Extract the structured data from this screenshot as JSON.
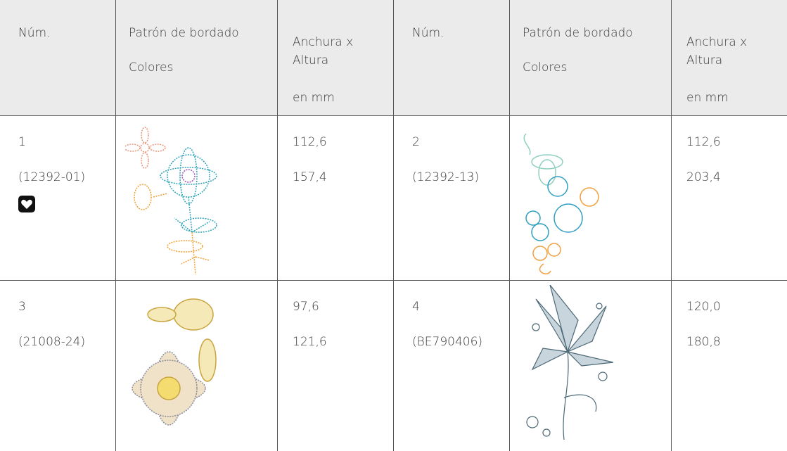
{
  "table": {
    "header": {
      "left": {
        "num": "Núm.",
        "pattern": "Patrón de bordado",
        "colors": "Colores",
        "size": "Anchura x Altura",
        "unit": "en mm"
      },
      "right": {
        "num": "Núm.",
        "pattern": "Patrón de bordado",
        "colors": "Colores",
        "size": "Anchura x Altura",
        "unit": "en mm"
      }
    },
    "rows": [
      {
        "left": {
          "num": "1",
          "code": "(12392-01)",
          "width": "112,6",
          "height": "157,4"
        },
        "right": {
          "num": "2",
          "code": "(12392-13)",
          "width": "112,6",
          "height": "203,4"
        }
      },
      {
        "left": {
          "num": "3",
          "code": "(21008-24)",
          "width": "97,6",
          "height": "121,6"
        },
        "right": {
          "num": "4",
          "code": "(BE790406)",
          "width": "120,0",
          "height": "180,8"
        }
      }
    ]
  }
}
